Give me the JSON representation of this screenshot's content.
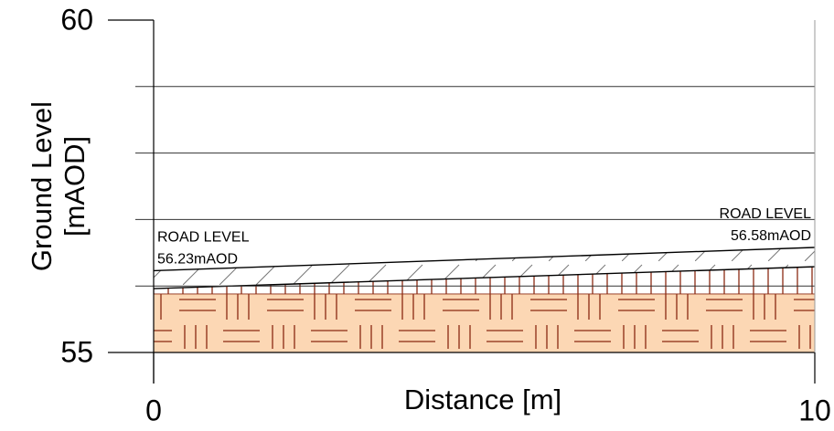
{
  "chart_data": {
    "type": "section",
    "x_label": "Distance [m]",
    "y_label": [
      "Ground Level",
      "[mAOD]"
    ],
    "x": [
      0,
      10
    ],
    "series": [
      {
        "color": "#000000",
        "values": [
          56.23,
          56.58
        ],
        "annotations": [
          "ROAD LEVEL",
          "ROAD LEVEL"
        ],
        "value_labels": [
          "56.23mAOD",
          "56.58mAOD"
        ]
      },
      {
        "color": "#000000",
        "values": [
          55.96,
          56.29
        ]
      },
      {
        "color": "#fcd7b4",
        "values": [
          55.88,
          55.88
        ]
      }
    ],
    "xlim": [
      0,
      10
    ],
    "xticks": [
      0,
      10
    ],
    "ylim": [
      55,
      60
    ],
    "yticks": [
      55,
      60
    ],
    "minor_yticks": [
      56,
      57,
      58,
      59
    ],
    "grid": true
  }
}
